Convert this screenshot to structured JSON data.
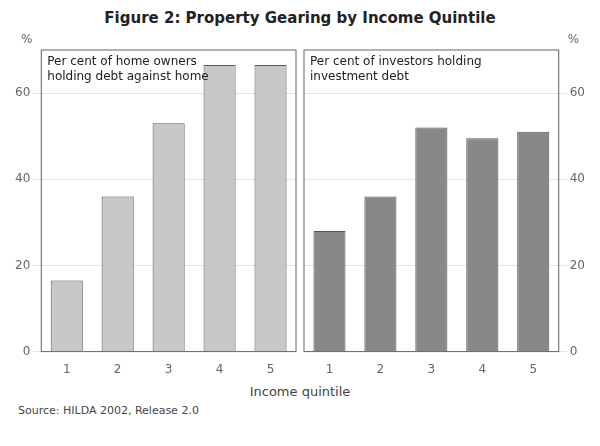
{
  "title": "Figure 2: Property Gearing by Income Quintile",
  "xlabel": "Income quintile",
  "source": "Source: HILDA 2002, Release 2.0",
  "chart_data": [
    {
      "type": "bar",
      "ylabel": "%",
      "annotation": "Per cent of home owners\nholding debt against home",
      "categories": [
        "1",
        "2",
        "3",
        "4",
        "5"
      ],
      "values": [
        16.5,
        36,
        53,
        66.5,
        66.5
      ],
      "color": "#c8c8c8",
      "ylim": [
        0,
        70
      ],
      "yticks": [
        0,
        20,
        40,
        60
      ],
      "grid": true
    },
    {
      "type": "bar",
      "ylabel": "%",
      "annotation": "Per cent of investors holding\ninvestment debt",
      "categories": [
        "1",
        "2",
        "3",
        "4",
        "5"
      ],
      "values": [
        28,
        36,
        52,
        49.5,
        51
      ],
      "color": "#888888",
      "ylim": [
        0,
        70
      ],
      "yticks": [
        0,
        20,
        40,
        60
      ],
      "grid": true
    }
  ]
}
